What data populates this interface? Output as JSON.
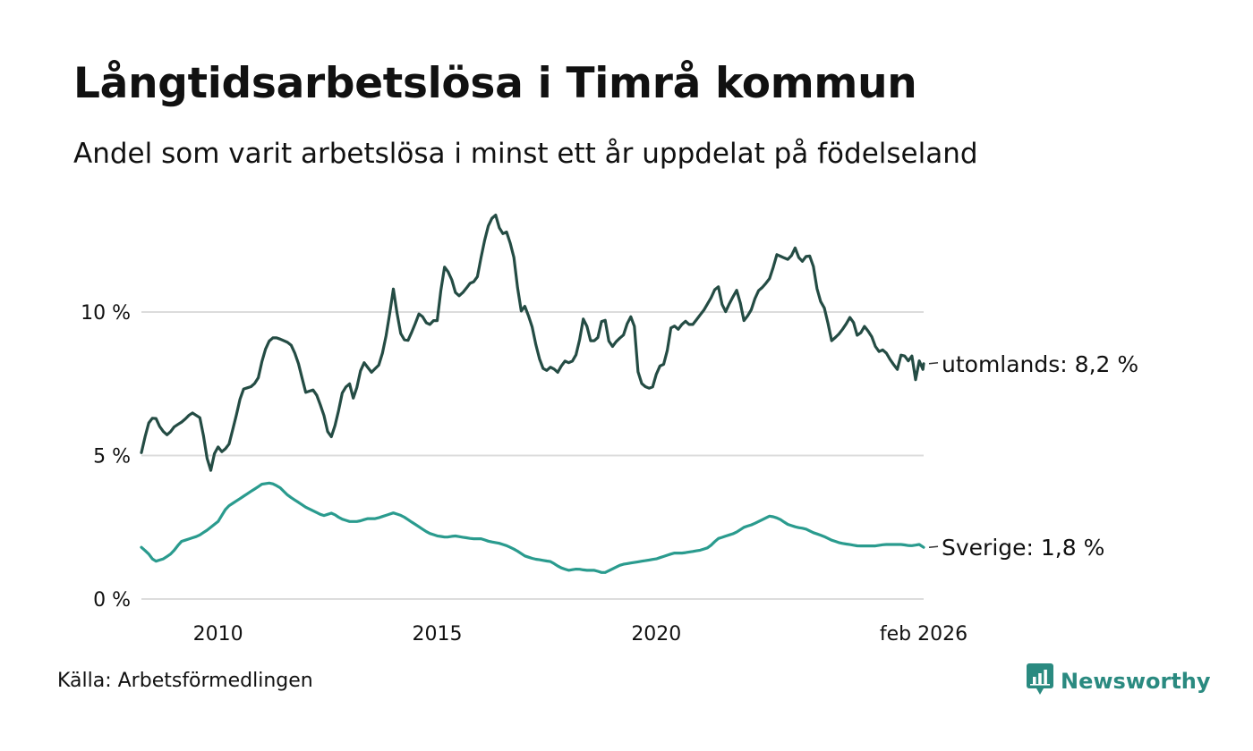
{
  "title": "Långtidsarbetslösa i Timrå kommun",
  "subtitle": "Andel som varit arbetslösa i minst ett år uppdelat på födelseland",
  "source": "Källa: Arbetsförmedlingen",
  "brand": {
    "name": "Newsworthy",
    "icon": "newsworthy-logo-icon",
    "color": "#2a8a80"
  },
  "chart_data": {
    "type": "line",
    "x_start": 2008.25,
    "x_step_months": 1,
    "ylim": [
      0,
      13.5
    ],
    "xlim": [
      2008.25,
      2026.1
    ],
    "y_ticks": [
      {
        "value": 0,
        "label": "0 %"
      },
      {
        "value": 5,
        "label": "5 %"
      },
      {
        "value": 10,
        "label": "10 %"
      }
    ],
    "x_ticks": [
      {
        "value": 2010,
        "label": "2010"
      },
      {
        "value": 2015,
        "label": "2015"
      },
      {
        "value": 2020,
        "label": "2020"
      },
      {
        "value": 2026.1,
        "label": "feb 2026"
      }
    ],
    "grid": true,
    "series": [
      {
        "name": "utomlands",
        "label": "utomlands: 8,2 %",
        "color": "#244c44",
        "anchors": [
          [
            2008.25,
            5.1
          ],
          [
            2008.4,
            6.1
          ],
          [
            2008.55,
            6.4
          ],
          [
            2008.7,
            5.9
          ],
          [
            2008.85,
            5.7
          ],
          [
            2009.0,
            6.0
          ],
          [
            2009.2,
            6.2
          ],
          [
            2009.4,
            6.5
          ],
          [
            2009.6,
            6.3
          ],
          [
            2009.75,
            4.9
          ],
          [
            2009.85,
            4.4
          ],
          [
            2009.95,
            5.4
          ],
          [
            2010.1,
            5.1
          ],
          [
            2010.25,
            5.4
          ],
          [
            2010.4,
            6.3
          ],
          [
            2010.55,
            7.3
          ],
          [
            2010.75,
            7.4
          ],
          [
            2010.9,
            7.6
          ],
          [
            2011.05,
            8.6
          ],
          [
            2011.2,
            9.1
          ],
          [
            2011.35,
            9.1
          ],
          [
            2011.5,
            9.0
          ],
          [
            2011.65,
            8.9
          ],
          [
            2011.8,
            8.4
          ],
          [
            2012.0,
            7.2
          ],
          [
            2012.2,
            7.3
          ],
          [
            2012.4,
            6.5
          ],
          [
            2012.55,
            5.5
          ],
          [
            2012.7,
            6.2
          ],
          [
            2012.85,
            7.3
          ],
          [
            2013.0,
            7.5
          ],
          [
            2013.1,
            6.9
          ],
          [
            2013.3,
            8.3
          ],
          [
            2013.5,
            7.9
          ],
          [
            2013.7,
            8.2
          ],
          [
            2013.85,
            9.3
          ],
          [
            2014.0,
            10.8
          ],
          [
            2014.15,
            9.3
          ],
          [
            2014.3,
            8.9
          ],
          [
            2014.45,
            9.4
          ],
          [
            2014.6,
            10.0
          ],
          [
            2014.8,
            9.5
          ],
          [
            2014.9,
            9.7
          ],
          [
            2015.0,
            9.7
          ],
          [
            2015.15,
            11.6
          ],
          [
            2015.3,
            11.3
          ],
          [
            2015.45,
            10.5
          ],
          [
            2015.6,
            10.7
          ],
          [
            2015.75,
            11.0
          ],
          [
            2015.9,
            11.1
          ],
          [
            2016.05,
            12.3
          ],
          [
            2016.2,
            13.2
          ],
          [
            2016.35,
            13.4
          ],
          [
            2016.45,
            12.7
          ],
          [
            2016.6,
            12.8
          ],
          [
            2016.75,
            11.9
          ],
          [
            2016.9,
            10.0
          ],
          [
            2017.0,
            10.2
          ],
          [
            2017.15,
            9.6
          ],
          [
            2017.3,
            8.5
          ],
          [
            2017.45,
            7.9
          ],
          [
            2017.6,
            8.1
          ],
          [
            2017.75,
            7.9
          ],
          [
            2017.9,
            8.3
          ],
          [
            2018.05,
            8.2
          ],
          [
            2018.2,
            8.6
          ],
          [
            2018.35,
            9.9
          ],
          [
            2018.5,
            9.0
          ],
          [
            2018.65,
            9.0
          ],
          [
            2018.8,
            10.0
          ],
          [
            2018.95,
            8.7
          ],
          [
            2019.1,
            9.0
          ],
          [
            2019.25,
            9.2
          ],
          [
            2019.4,
            9.9
          ],
          [
            2019.5,
            9.5
          ],
          [
            2019.6,
            7.6
          ],
          [
            2019.75,
            7.4
          ],
          [
            2019.9,
            7.3
          ],
          [
            2020.05,
            8.1
          ],
          [
            2020.2,
            8.2
          ],
          [
            2020.35,
            9.6
          ],
          [
            2020.5,
            9.4
          ],
          [
            2020.65,
            9.7
          ],
          [
            2020.8,
            9.5
          ],
          [
            2020.95,
            9.8
          ],
          [
            2021.1,
            10.1
          ],
          [
            2021.25,
            10.5
          ],
          [
            2021.4,
            11.0
          ],
          [
            2021.55,
            9.9
          ],
          [
            2021.7,
            10.4
          ],
          [
            2021.85,
            10.8
          ],
          [
            2022.0,
            9.7
          ],
          [
            2022.15,
            10.0
          ],
          [
            2022.3,
            10.7
          ],
          [
            2022.45,
            10.9
          ],
          [
            2022.6,
            11.2
          ],
          [
            2022.75,
            12.0
          ],
          [
            2022.9,
            11.9
          ],
          [
            2023.05,
            11.8
          ],
          [
            2023.15,
            12.3
          ],
          [
            2023.3,
            11.7
          ],
          [
            2023.45,
            12.0
          ],
          [
            2023.55,
            11.9
          ],
          [
            2023.7,
            10.5
          ],
          [
            2023.85,
            10.1
          ],
          [
            2024.0,
            9.0
          ],
          [
            2024.15,
            9.2
          ],
          [
            2024.3,
            9.5
          ],
          [
            2024.45,
            9.9
          ],
          [
            2024.6,
            9.1
          ],
          [
            2024.75,
            9.5
          ],
          [
            2024.9,
            9.2
          ],
          [
            2025.05,
            8.6
          ],
          [
            2025.2,
            8.7
          ],
          [
            2025.35,
            8.3
          ],
          [
            2025.5,
            8.0
          ],
          [
            2025.6,
            8.6
          ],
          [
            2025.75,
            8.3
          ],
          [
            2025.85,
            8.5
          ],
          [
            2025.92,
            7.6
          ],
          [
            2026.0,
            8.3
          ],
          [
            2026.05,
            7.6
          ],
          [
            2026.1,
            8.2
          ]
        ]
      },
      {
        "name": "Sverige",
        "label": "Sverige: 1,8 %",
        "color": "#2a9b8e",
        "anchors": [
          [
            2008.25,
            1.8
          ],
          [
            2008.4,
            1.6
          ],
          [
            2008.55,
            1.3
          ],
          [
            2008.75,
            1.4
          ],
          [
            2008.95,
            1.6
          ],
          [
            2009.15,
            2.0
          ],
          [
            2009.35,
            2.1
          ],
          [
            2009.55,
            2.2
          ],
          [
            2009.75,
            2.4
          ],
          [
            2010.0,
            2.7
          ],
          [
            2010.2,
            3.2
          ],
          [
            2010.4,
            3.4
          ],
          [
            2010.6,
            3.6
          ],
          [
            2010.8,
            3.8
          ],
          [
            2011.0,
            4.0
          ],
          [
            2011.2,
            4.05
          ],
          [
            2011.4,
            3.9
          ],
          [
            2011.6,
            3.6
          ],
          [
            2011.8,
            3.4
          ],
          [
            2012.0,
            3.2
          ],
          [
            2012.2,
            3.05
          ],
          [
            2012.4,
            2.9
          ],
          [
            2012.6,
            3.0
          ],
          [
            2012.8,
            2.8
          ],
          [
            2013.0,
            2.7
          ],
          [
            2013.2,
            2.7
          ],
          [
            2013.4,
            2.8
          ],
          [
            2013.6,
            2.8
          ],
          [
            2013.8,
            2.9
          ],
          [
            2014.0,
            3.0
          ],
          [
            2014.2,
            2.9
          ],
          [
            2014.4,
            2.7
          ],
          [
            2014.6,
            2.5
          ],
          [
            2014.8,
            2.3
          ],
          [
            2015.0,
            2.2
          ],
          [
            2015.2,
            2.15
          ],
          [
            2015.4,
            2.2
          ],
          [
            2015.6,
            2.15
          ],
          [
            2015.8,
            2.1
          ],
          [
            2016.0,
            2.1
          ],
          [
            2016.2,
            2.0
          ],
          [
            2016.4,
            1.95
          ],
          [
            2016.6,
            1.85
          ],
          [
            2016.8,
            1.7
          ],
          [
            2017.0,
            1.5
          ],
          [
            2017.2,
            1.4
          ],
          [
            2017.4,
            1.35
          ],
          [
            2017.6,
            1.3
          ],
          [
            2017.8,
            1.1
          ],
          [
            2018.0,
            1.0
          ],
          [
            2018.2,
            1.05
          ],
          [
            2018.4,
            1.0
          ],
          [
            2018.6,
            1.0
          ],
          [
            2018.8,
            0.9
          ],
          [
            2019.0,
            1.05
          ],
          [
            2019.2,
            1.2
          ],
          [
            2019.4,
            1.25
          ],
          [
            2019.6,
            1.3
          ],
          [
            2019.8,
            1.35
          ],
          [
            2020.0,
            1.4
          ],
          [
            2020.2,
            1.5
          ],
          [
            2020.4,
            1.6
          ],
          [
            2020.6,
            1.6
          ],
          [
            2020.8,
            1.65
          ],
          [
            2021.0,
            1.7
          ],
          [
            2021.2,
            1.8
          ],
          [
            2021.4,
            2.1
          ],
          [
            2021.6,
            2.2
          ],
          [
            2021.8,
            2.3
          ],
          [
            2022.0,
            2.5
          ],
          [
            2022.2,
            2.6
          ],
          [
            2022.4,
            2.75
          ],
          [
            2022.6,
            2.9
          ],
          [
            2022.8,
            2.8
          ],
          [
            2023.0,
            2.6
          ],
          [
            2023.2,
            2.5
          ],
          [
            2023.4,
            2.45
          ],
          [
            2023.6,
            2.3
          ],
          [
            2023.8,
            2.2
          ],
          [
            2024.0,
            2.05
          ],
          [
            2024.2,
            1.95
          ],
          [
            2024.4,
            1.9
          ],
          [
            2024.6,
            1.85
          ],
          [
            2024.8,
            1.85
          ],
          [
            2025.0,
            1.85
          ],
          [
            2025.2,
            1.9
          ],
          [
            2025.4,
            1.9
          ],
          [
            2025.6,
            1.9
          ],
          [
            2025.8,
            1.85
          ],
          [
            2026.0,
            1.9
          ],
          [
            2026.1,
            1.8
          ]
        ]
      }
    ]
  }
}
